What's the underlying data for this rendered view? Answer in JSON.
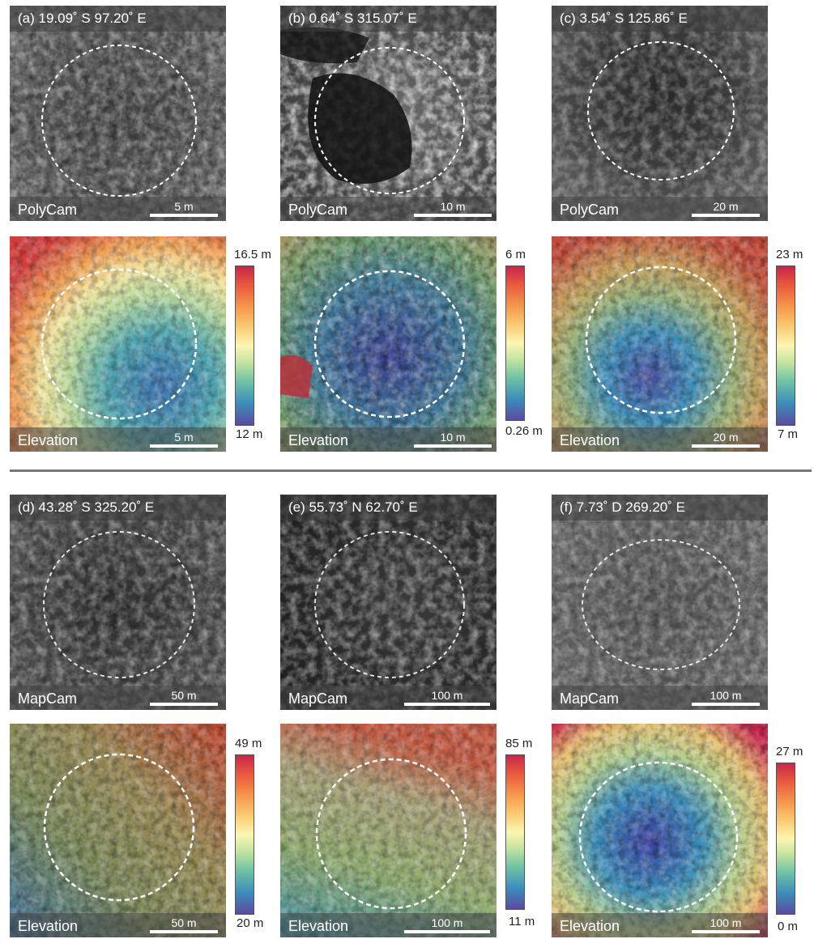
{
  "panels": {
    "a": {
      "coord": "(a) 19.09˚ S 97.20˚ E",
      "image_label": "PolyCam",
      "image_scale": "5 m",
      "elev_label": "Elevation",
      "elev_scale": "5 m",
      "cb_max": "16.5 m",
      "cb_min": "12 m"
    },
    "b": {
      "coord": "(b) 0.64˚ S 315.07˚ E",
      "image_label": "PolyCam",
      "image_scale": "10 m",
      "elev_label": "Elevation",
      "elev_scale": "10 m",
      "cb_max": "6 m",
      "cb_min": "0.26 m"
    },
    "c": {
      "coord": "(c) 3.54˚ S 125.86˚ E",
      "image_label": "PolyCam",
      "image_scale": "20 m",
      "elev_label": "Elevation",
      "elev_scale": "20 m",
      "cb_max": "23 m",
      "cb_min": "7 m"
    },
    "d": {
      "coord": "(d) 43.28˚ S 325.20˚ E",
      "image_label": "MapCam",
      "image_scale": "50 m",
      "elev_label": "Elevation",
      "elev_scale": "50 m",
      "cb_max": "49 m",
      "cb_min": "20 m"
    },
    "e": {
      "coord": "(e) 55.73˚ N 62.70˚ E",
      "image_label": "MapCam",
      "image_scale": "100 m",
      "elev_label": "Elevation",
      "elev_scale": "100 m",
      "cb_max": "85 m",
      "cb_min": "11 m"
    },
    "f": {
      "coord": "(f) 7.73˚ D 269.20˚ E",
      "image_label": "MapCam",
      "image_scale": "100 m",
      "elev_label": "Elevation",
      "elev_scale": "100 m",
      "cb_max": "27 m",
      "cb_min": "0 m"
    }
  },
  "colors": {
    "crater_outline": "#ffffff",
    "colorbar": [
      "#c8254a",
      "#e9593e",
      "#f6994c",
      "#fbd27a",
      "#fcf6b2",
      "#c7e5a0",
      "#73c4a4",
      "#3b8fbb",
      "#5b4a9f"
    ]
  }
}
